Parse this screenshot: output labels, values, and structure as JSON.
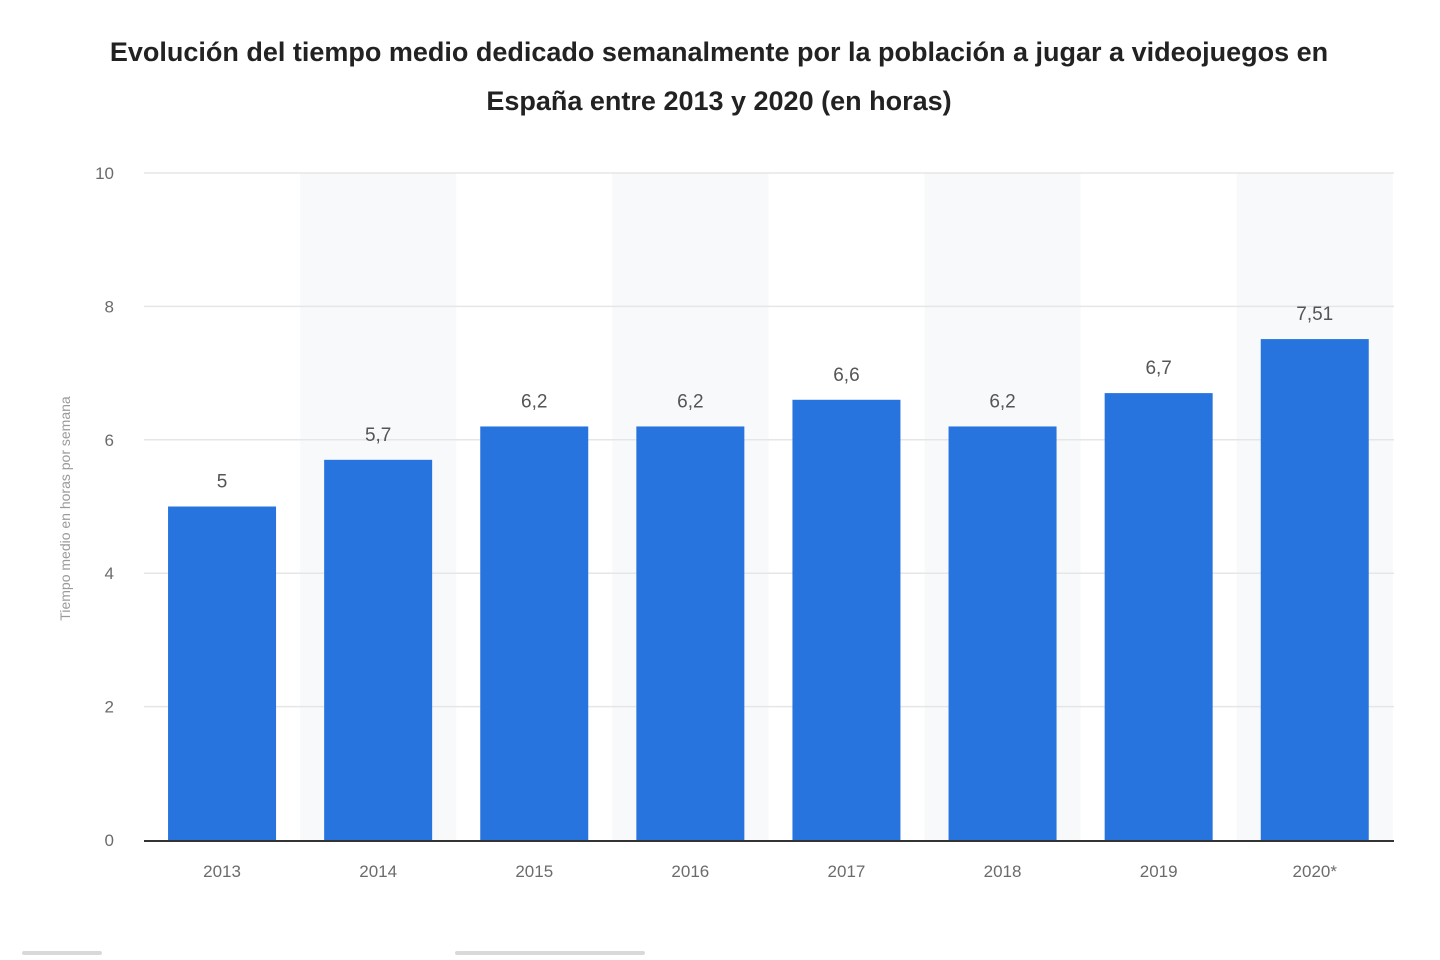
{
  "chart_data": {
    "type": "bar",
    "title": "Evolución del tiempo medio dedicado semanalmente por la población a jugar a videojuegos en España entre 2013 y 2020 (en horas)",
    "xlabel": "",
    "ylabel": "Tiempo medio en horas por semana",
    "categories": [
      "2013",
      "2014",
      "2015",
      "2016",
      "2017",
      "2018",
      "2019",
      "2020*"
    ],
    "values": [
      5,
      5.7,
      6.2,
      6.2,
      6.6,
      6.2,
      6.7,
      7.51
    ],
    "value_labels": [
      "5",
      "5,7",
      "6,2",
      "6,2",
      "6,6",
      "6,2",
      "6,7",
      "7,51"
    ],
    "ylim": [
      0,
      10
    ],
    "yticks": [
      0,
      2,
      4,
      6,
      8,
      10
    ],
    "ytick_labels": [
      "0",
      "2",
      "4",
      "6",
      "8",
      "10"
    ],
    "grid": true,
    "bar_color": "#2874de",
    "band_color": "#f8f9fb"
  }
}
